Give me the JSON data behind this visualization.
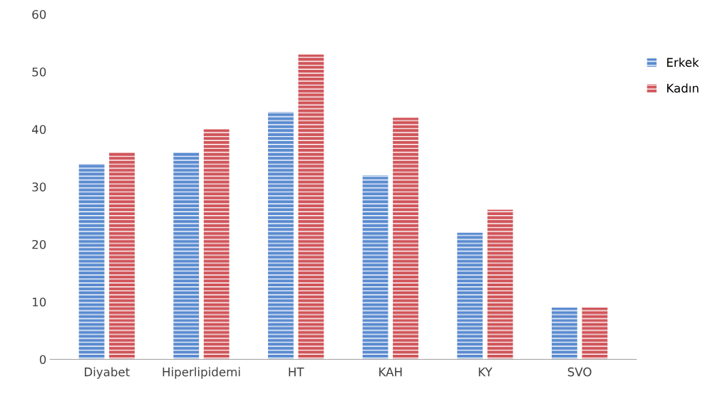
{
  "chart_data": {
    "type": "bar",
    "categories": [
      "Diyabet",
      "Hiperlipidemi",
      "HT",
      "KAH",
      "KY",
      "SVO"
    ],
    "series": [
      {
        "name": "Erkek",
        "color": "#5b8bd0",
        "values": [
          34,
          36,
          43,
          32,
          22,
          9
        ]
      },
      {
        "name": "Kadın",
        "color": "#d0555a",
        "values": [
          36,
          40,
          53,
          42,
          26,
          9
        ]
      }
    ],
    "ylim": [
      0,
      60
    ],
    "yticks": [
      0,
      10,
      20,
      30,
      40,
      50,
      60
    ],
    "grid": false,
    "legend": "right"
  }
}
